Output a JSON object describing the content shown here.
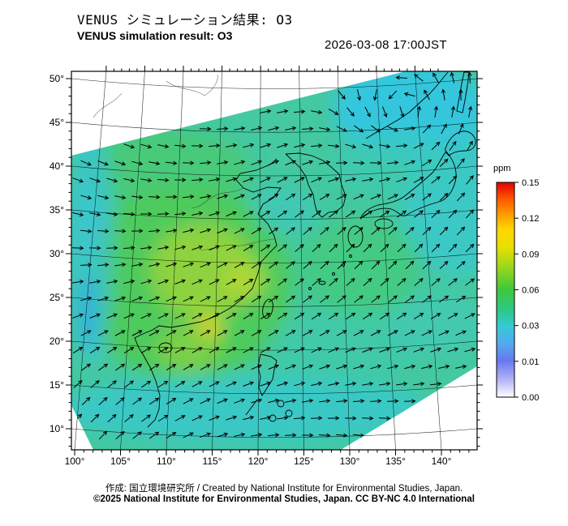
{
  "header": {
    "title_ja": "VENUS シミュレーション結果: O3",
    "title_en": "VENUS simulation result: O3",
    "timestamp": "2026-03-08 17:00JST"
  },
  "map": {
    "lat_ticks": [
      "50°",
      "45°",
      "40°",
      "35°",
      "30°",
      "25°",
      "20°",
      "15°",
      "10°"
    ],
    "lon_ticks": [
      "100°",
      "105°",
      "110°",
      "115°",
      "120°",
      "125°",
      "130°",
      "135°",
      "140°"
    ]
  },
  "colorbar": {
    "unit": "ppm",
    "tick_labels": [
      "0.15",
      "0.12",
      "0.09",
      "0.06",
      "0.03",
      "0.01",
      "0.00"
    ],
    "gradient": [
      {
        "o": 0,
        "c": "#e00000"
      },
      {
        "o": 8,
        "c": "#ff5a00"
      },
      {
        "o": 15,
        "c": "#ff9c00"
      },
      {
        "o": 22,
        "c": "#ffd800"
      },
      {
        "o": 30,
        "c": "#e8e000"
      },
      {
        "o": 38,
        "c": "#a8d818"
      },
      {
        "o": 50,
        "c": "#3cc83c"
      },
      {
        "o": 60,
        "c": "#2ec88c"
      },
      {
        "o": 67,
        "c": "#35c9d5"
      },
      {
        "o": 75,
        "c": "#55aaee"
      },
      {
        "o": 83,
        "c": "#6678ee"
      },
      {
        "o": 92,
        "c": "#b4b4f6"
      },
      {
        "o": 100,
        "c": "#ffffff"
      }
    ]
  },
  "footer": {
    "credit": "作成: 国立環境研究所 / Created by National Institute for Environmental Studies, Japan.",
    "license": "©2025 National Institute for Environmental Studies, Japan. CC BY-NC 4.0 International"
  }
}
